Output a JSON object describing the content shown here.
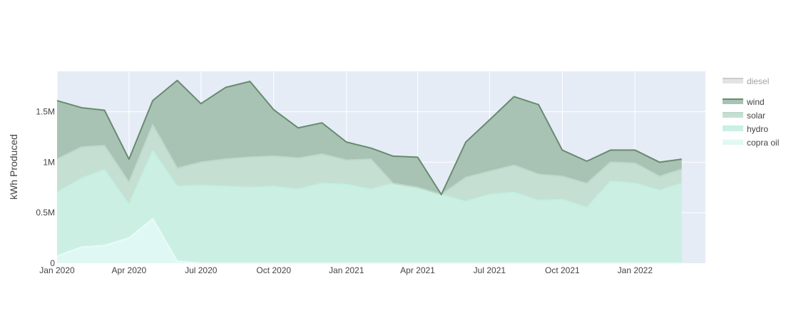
{
  "chart_data": {
    "type": "area",
    "stacked": true,
    "xlabel": "",
    "ylabel": "kWh Produced",
    "ylim": [
      0,
      1900000
    ],
    "x_range": [
      "2020-01-01",
      "2022-03-31"
    ],
    "x_ticks": [
      {
        "date": "2020-01-01",
        "label": "Jan 2020"
      },
      {
        "date": "2020-04-01",
        "label": "Apr 2020"
      },
      {
        "date": "2020-07-01",
        "label": "Jul 2020"
      },
      {
        "date": "2020-10-01",
        "label": "Oct 2020"
      },
      {
        "date": "2021-01-01",
        "label": "Jan 2021"
      },
      {
        "date": "2021-04-01",
        "label": "Apr 2021"
      },
      {
        "date": "2021-07-01",
        "label": "Jul 2021"
      },
      {
        "date": "2021-10-01",
        "label": "Oct 2021"
      },
      {
        "date": "2022-01-01",
        "label": "Jan 2022"
      }
    ],
    "y_ticks": [
      {
        "value": 0,
        "label": "0"
      },
      {
        "value": 500000,
        "label": "0.5M"
      },
      {
        "value": 1000000,
        "label": "1M"
      },
      {
        "value": 1500000,
        "label": "1.5M"
      }
    ],
    "grid": true,
    "legend_position": "right",
    "x": [
      "2020-01-01",
      "2020-02-01",
      "2020-03-01",
      "2020-04-01",
      "2020-05-01",
      "2020-06-01",
      "2020-07-01",
      "2020-08-01",
      "2020-09-01",
      "2020-10-01",
      "2020-11-01",
      "2020-12-01",
      "2021-01-01",
      "2021-02-01",
      "2021-03-01",
      "2021-04-01",
      "2021-05-01",
      "2021-06-01",
      "2021-07-01",
      "2021-08-01",
      "2021-09-01",
      "2021-10-01",
      "2021-11-01",
      "2021-12-01",
      "2022-01-01",
      "2022-02-01",
      "2022-03-01"
    ],
    "series": [
      {
        "name": "copra oil",
        "fill": "#e0f8f4",
        "line": "#e8fbf8",
        "values": [
          70000,
          160000,
          175000,
          250000,
          440000,
          20000,
          0,
          0,
          0,
          0,
          0,
          0,
          0,
          0,
          0,
          0,
          0,
          0,
          0,
          0,
          0,
          0,
          0,
          0,
          0,
          0,
          0
        ]
      },
      {
        "name": "hydro",
        "fill": "#ccefe4",
        "line": "#c2f0df",
        "values": [
          630000,
          680000,
          750000,
          330000,
          670000,
          740000,
          770000,
          760000,
          750000,
          760000,
          730000,
          790000,
          780000,
          730000,
          790000,
          750000,
          680000,
          610000,
          680000,
          700000,
          620000,
          630000,
          550000,
          810000,
          790000,
          720000,
          790000
        ]
      },
      {
        "name": "solar",
        "fill": "#c5e0d3",
        "line": "#bcd9cb",
        "values": [
          330000,
          310000,
          240000,
          220000,
          260000,
          180000,
          230000,
          270000,
          300000,
          300000,
          310000,
          290000,
          240000,
          300000,
          0,
          0,
          0,
          240000,
          230000,
          270000,
          260000,
          230000,
          240000,
          190000,
          200000,
          140000,
          140000
        ]
      },
      {
        "name": "wind",
        "fill": "#a8c3b3",
        "line": "#688b70",
        "values": [
          580000,
          390000,
          350000,
          230000,
          240000,
          870000,
          580000,
          710000,
          750000,
          460000,
          300000,
          310000,
          180000,
          110000,
          270000,
          300000,
          0,
          350000,
          510000,
          680000,
          690000,
          260000,
          220000,
          120000,
          130000,
          140000,
          100000
        ]
      },
      {
        "name": "diesel",
        "fill": "#c8c8c8",
        "line": "#9a9a9a",
        "visible": false,
        "values": [
          0,
          0,
          0,
          0,
          0,
          0,
          0,
          0,
          0,
          0,
          0,
          0,
          0,
          0,
          0,
          0,
          0,
          0,
          0,
          0,
          0,
          0,
          0,
          0,
          0,
          0,
          0
        ]
      }
    ],
    "legend_order": [
      "diesel",
      "wind",
      "solar",
      "hydro",
      "copra oil"
    ]
  }
}
